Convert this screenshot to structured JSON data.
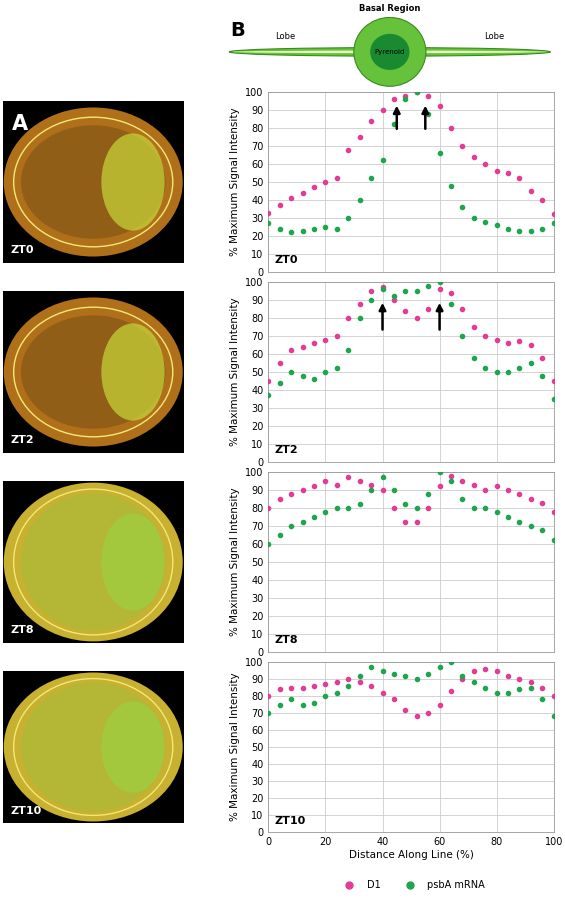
{
  "chart_data": [
    {
      "type": "scatter",
      "annotations": [
        "ZT0"
      ],
      "ylabel": "% Maximum Signal Intensity",
      "x": [
        0,
        4,
        8,
        12,
        16,
        20,
        24,
        28,
        32,
        36,
        40,
        44,
        48,
        52,
        56,
        60,
        64,
        68,
        72,
        76,
        80,
        84,
        88,
        92,
        96,
        100
      ],
      "series": [
        {
          "name": "D1",
          "color": "#e23c95",
          "marker": "o",
          "values": [
            33,
            37,
            41,
            44,
            47,
            50,
            52,
            68,
            75,
            84,
            90,
            96,
            98,
            100,
            98,
            92,
            80,
            70,
            64,
            60,
            56,
            55,
            52,
            45,
            40,
            32
          ]
        },
        {
          "name": "psbA mRNA",
          "color": "#1fa54f",
          "marker": "o",
          "values": [
            27,
            24,
            22,
            23,
            24,
            25,
            24,
            30,
            40,
            52,
            62,
            82,
            96,
            100,
            88,
            66,
            48,
            36,
            30,
            28,
            26,
            24,
            23,
            23,
            24,
            27
          ]
        }
      ],
      "arrows": [
        {
          "x": 45,
          "from": 78,
          "to": 94
        },
        {
          "x": 55,
          "from": 78,
          "to": 94
        }
      ],
      "xlim": [
        0,
        100
      ],
      "ylim": [
        0,
        100
      ],
      "xticks": [
        0,
        20,
        40,
        60,
        80,
        100
      ],
      "yticks": [
        0,
        10,
        20,
        30,
        40,
        50,
        60,
        70,
        80,
        90,
        100
      ],
      "grid": true,
      "tick_labels": "y"
    },
    {
      "type": "scatter",
      "annotations": [
        "ZT2"
      ],
      "ylabel": "% Maximum Signal Intensity",
      "x": [
        0,
        4,
        8,
        12,
        16,
        20,
        24,
        28,
        32,
        36,
        40,
        44,
        48,
        52,
        56,
        60,
        64,
        68,
        72,
        76,
        80,
        84,
        88,
        92,
        96,
        100
      ],
      "series": [
        {
          "name": "D1",
          "color": "#e23c95",
          "marker": "o",
          "values": [
            45,
            55,
            62,
            64,
            66,
            68,
            70,
            80,
            88,
            95,
            97,
            90,
            84,
            80,
            85,
            96,
            94,
            85,
            75,
            70,
            68,
            66,
            67,
            65,
            58,
            45
          ]
        },
        {
          "name": "psbA mRNA",
          "color": "#1fa54f",
          "marker": "o",
          "values": [
            37,
            44,
            50,
            48,
            46,
            50,
            52,
            62,
            80,
            90,
            96,
            92,
            95,
            95,
            98,
            100,
            88,
            70,
            58,
            52,
            50,
            50,
            52,
            55,
            48,
            35
          ]
        }
      ],
      "arrows": [
        {
          "x": 40,
          "from": 72,
          "to": 90
        },
        {
          "x": 60,
          "from": 72,
          "to": 90
        }
      ],
      "xlim": [
        0,
        100
      ],
      "ylim": [
        0,
        100
      ],
      "xticks": [
        0,
        20,
        40,
        60,
        80,
        100
      ],
      "yticks": [
        0,
        10,
        20,
        30,
        40,
        50,
        60,
        70,
        80,
        90,
        100
      ],
      "grid": true,
      "tick_labels": "y"
    },
    {
      "type": "scatter",
      "annotations": [
        "ZT8"
      ],
      "ylabel": "% Maximum Signal Intensity",
      "x": [
        0,
        4,
        8,
        12,
        16,
        20,
        24,
        28,
        32,
        36,
        40,
        44,
        48,
        52,
        56,
        60,
        64,
        68,
        72,
        76,
        80,
        84,
        88,
        92,
        96,
        100
      ],
      "series": [
        {
          "name": "D1",
          "color": "#e23c95",
          "marker": "o",
          "values": [
            80,
            85,
            88,
            90,
            92,
            95,
            93,
            97,
            95,
            93,
            90,
            80,
            72,
            72,
            80,
            92,
            98,
            95,
            93,
            90,
            92,
            90,
            88,
            85,
            83,
            78
          ]
        },
        {
          "name": "psbA mRNA",
          "color": "#1fa54f",
          "marker": "o",
          "values": [
            60,
            65,
            70,
            72,
            75,
            78,
            80,
            80,
            82,
            90,
            97,
            90,
            82,
            80,
            88,
            100,
            95,
            85,
            80,
            80,
            78,
            75,
            72,
            70,
            68,
            62
          ]
        }
      ],
      "xlim": [
        0,
        100
      ],
      "ylim": [
        0,
        100
      ],
      "xticks": [
        0,
        20,
        40,
        60,
        80,
        100
      ],
      "yticks": [
        0,
        10,
        20,
        30,
        40,
        50,
        60,
        70,
        80,
        90,
        100
      ],
      "grid": true,
      "tick_labels": "y"
    },
    {
      "type": "scatter",
      "annotations": [
        "ZT10"
      ],
      "ylabel": "% Maximum Signal Intensity",
      "xlabel": "Distance Along Line (%)",
      "x": [
        0,
        4,
        8,
        12,
        16,
        20,
        24,
        28,
        32,
        36,
        40,
        44,
        48,
        52,
        56,
        60,
        64,
        68,
        72,
        76,
        80,
        84,
        88,
        92,
        96,
        100
      ],
      "series": [
        {
          "name": "D1",
          "color": "#e23c95",
          "marker": "o",
          "values": [
            80,
            84,
            85,
            85,
            86,
            87,
            88,
            90,
            88,
            86,
            82,
            78,
            72,
            68,
            70,
            75,
            83,
            90,
            95,
            96,
            95,
            92,
            90,
            88,
            85,
            80
          ]
        },
        {
          "name": "psbA mRNA",
          "color": "#1fa54f",
          "marker": "o",
          "values": [
            70,
            75,
            78,
            75,
            76,
            80,
            82,
            86,
            92,
            97,
            95,
            93,
            92,
            90,
            93,
            97,
            100,
            92,
            88,
            85,
            82,
            82,
            84,
            85,
            78,
            68
          ]
        }
      ],
      "xlim": [
        0,
        100
      ],
      "ylim": [
        0,
        100
      ],
      "xticks": [
        0,
        20,
        40,
        60,
        80,
        100
      ],
      "yticks": [
        0,
        10,
        20,
        30,
        40,
        50,
        60,
        70,
        80,
        90,
        100
      ],
      "grid": true,
      "legend": "lower center"
    }
  ],
  "figure": {
    "panel_labels": [
      "A",
      "B"
    ],
    "schematic": {
      "title": "Basal Region",
      "lobes": [
        "Lobe",
        "Lobe"
      ],
      "pyrenoid": "Pyrenoid"
    }
  }
}
